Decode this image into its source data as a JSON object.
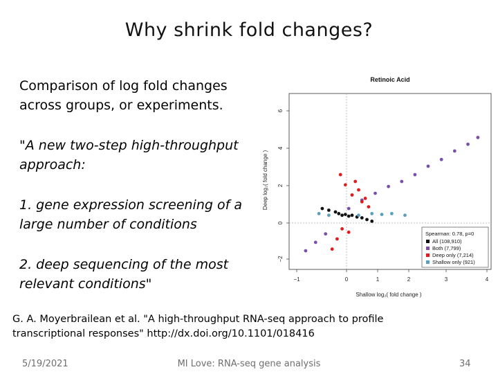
{
  "slide": {
    "title": "Why shrink fold changes?",
    "intro": "Comparison of log fold changes across groups, or experiments.",
    "quote_1": "\"A new two-step high-throughput approach:",
    "quote_2": "1. gene expression screening of a large number of conditions",
    "quote_3": "2. deep sequencing of the most relevant conditions\"",
    "citation": "G. A. Moyerbrailean et al. \"A high-throughput RNA-seq approach to profile transcriptional responses\" http://dx.doi.org/10.1101/018416"
  },
  "footer": {
    "date": "5/19/2021",
    "center": "MI Love: RNA-seq gene analysis",
    "page": "34"
  },
  "figure": {
    "title": "Retinoic Acid",
    "xlabel": "Shallow log₂( fold change )",
    "ylabel": "Deep log₂( fold change )",
    "x_ticks": [
      "−1",
      "0",
      "1",
      "2",
      "3",
      "4"
    ],
    "y_ticks": [
      "−2",
      "0",
      "2",
      "4",
      "6"
    ],
    "legend_header": "Spearman: 0.78, p=0",
    "legend": [
      {
        "label": "All (108,910)",
        "color": "#111111"
      },
      {
        "label": "Both (7,799)",
        "color": "#7b4fa8"
      },
      {
        "label": "Deep only (7,214)",
        "color": "#e01b1b"
      },
      {
        "label": "Shallow only (921)",
        "color": "#5b9fbf"
      }
    ]
  },
  "chart_data": {
    "type": "scatter",
    "title": "Retinoic Acid",
    "xlabel": "Shallow log₂( fold change )",
    "ylabel": "Deep log₂( fold change )",
    "xlim": [
      -1.6,
      4.5
    ],
    "ylim": [
      -3.2,
      7.2
    ],
    "grid": false,
    "legend_position": "bottom-right",
    "annotation": "Spearman: 0.78, p=0",
    "series": [
      {
        "name": "All (108,910)",
        "color": "#111111",
        "x": [
          -0.6,
          -0.4,
          -0.2,
          -0.1,
          0.0,
          0.1,
          0.2,
          0.3,
          0.45,
          0.6,
          0.75,
          0.9
        ],
        "y": [
          0.4,
          0.3,
          0.2,
          0.1,
          0.0,
          0.05,
          -0.05,
          0.0,
          -0.1,
          -0.15,
          -0.25,
          -0.35
        ]
      },
      {
        "name": "Both (7,799)",
        "color": "#7b4fa8",
        "x": [
          -1.1,
          -0.8,
          -0.5,
          0.2,
          0.6,
          1.0,
          1.4,
          1.8,
          2.2,
          2.6,
          3.0,
          3.4,
          3.8,
          4.1
        ],
        "y": [
          -2.1,
          -1.6,
          -1.1,
          0.4,
          0.9,
          1.3,
          1.7,
          2.0,
          2.4,
          2.9,
          3.3,
          3.8,
          4.2,
          4.6
        ]
      },
      {
        "name": "Deep only (7,214)",
        "color": "#e01b1b",
        "x": [
          -0.3,
          -0.15,
          -0.05,
          0.0,
          0.1,
          0.2,
          0.3,
          0.4,
          0.5,
          0.6,
          0.7,
          0.8
        ],
        "y": [
          -2.0,
          -1.4,
          2.4,
          -0.8,
          1.8,
          -1.0,
          1.2,
          2.0,
          1.5,
          0.8,
          1.0,
          0.5
        ]
      },
      {
        "name": "Shallow only (921)",
        "color": "#5b9fbf",
        "x": [
          -0.7,
          -0.4,
          0.5,
          0.9,
          1.2,
          1.5,
          1.9
        ],
        "y": [
          0.1,
          0.0,
          0.0,
          0.1,
          0.05,
          0.1,
          0.0
        ]
      }
    ]
  }
}
